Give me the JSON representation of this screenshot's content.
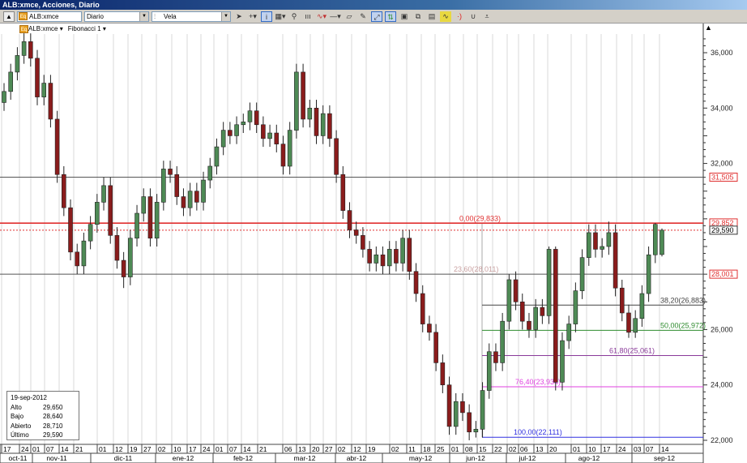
{
  "window": {
    "title": "ALB:xmce, Acciones, Diario"
  },
  "toolbar": {
    "symbol": "ALB:xmce",
    "period": "Diario",
    "chart_type": "Vela",
    "icons": [
      "collapse-icon",
      "cursor-icon",
      "crosshair-icon",
      "info-icon",
      "grid-icon",
      "zoom-icon",
      "volume-bars-icon",
      "indicator-icon",
      "line-icon",
      "eraser-icon",
      "draw-icon",
      "autoscale-icon",
      "compare-icon",
      "template-icon",
      "copy-icon",
      "save-icon",
      "chart-icon",
      "sound-icon",
      "magnet-icon",
      "more-icon"
    ]
  },
  "chart_header": {
    "symbol": "ALB:xmce",
    "study": "Fibonacci 1"
  },
  "info": {
    "date": "19-sep-2012",
    "rows": [
      {
        "k": "Alto",
        "v": "29,650"
      },
      {
        "k": "Bajo",
        "v": "28,640"
      },
      {
        "k": "Abierto",
        "v": "28,710"
      },
      {
        "k": "Último",
        "v": "29,590"
      }
    ]
  },
  "chart_data": {
    "type": "candlestick",
    "ylim": [
      22000,
      36000
    ],
    "y_ticks": [
      "36,000",
      "34,000",
      "32,000",
      "30,000",
      "28,000",
      "26,000",
      "24,000",
      "22,000"
    ],
    "y_tick_values": [
      36000,
      34000,
      32000,
      30000,
      28000,
      26000,
      24000,
      22000
    ],
    "day_labels": [
      "17",
      "24",
      "01",
      "07",
      "14",
      "21",
      "01",
      "12",
      "19",
      "27",
      "02",
      "10",
      "17",
      "24",
      "01",
      "07",
      "14",
      "21",
      "06",
      "13",
      "20",
      "27",
      "02",
      "12",
      "19",
      "02",
      "11",
      "18",
      "25",
      "01",
      "08",
      "15",
      "22",
      "02",
      "06",
      "13",
      "20",
      "01",
      "10",
      "17",
      "24",
      "03",
      "07",
      "14"
    ],
    "month_labels": [
      "oct-11",
      "nov-11",
      "dic-11",
      "ene-12",
      "feb-12",
      "mar-12",
      "abr-12",
      "may-12",
      "jun-12",
      "jul-12",
      "ago-12",
      "sep-12"
    ],
    "price_lines": [
      {
        "value": 31505,
        "label": "31,505",
        "color": "#555555",
        "label_color": "#e03030"
      },
      {
        "value": 29852,
        "label": "29,852",
        "color": "#e03030",
        "label_color": "#e03030"
      },
      {
        "value": 29590,
        "label": "29,590",
        "color": "#e03030",
        "label_color": "#000000",
        "dotted": true
      },
      {
        "value": 28001,
        "label": "28,001",
        "color": "#555555",
        "label_color": "#e03030"
      }
    ],
    "fibonacci": [
      {
        "label": "0,00(29,833)",
        "value": 29833,
        "color": "#e03030"
      },
      {
        "label": "23,60(28,011)",
        "value": 28011,
        "color": "#c8a0a0"
      },
      {
        "label": "38,20(26,883)",
        "value": 26883,
        "color": "#444444"
      },
      {
        "label": "50,00(25,972)",
        "value": 25972,
        "color": "#2e8b2e"
      },
      {
        "label": "61,80(25,061)",
        "value": 25061,
        "color": "#8a3a9a"
      },
      {
        "label": "76,40(23,934)",
        "value": 23934,
        "color": "#e040e0"
      },
      {
        "label": "100,00(22,111)",
        "value": 22111,
        "color": "#3030e0"
      }
    ],
    "up_color": "#4e8a55",
    "down_color": "#8a1c1c",
    "candles_ohlc_thousands": [
      [
        34.2,
        34.9,
        33.9,
        34.6
      ],
      [
        34.6,
        35.6,
        34.3,
        35.3
      ],
      [
        35.3,
        36.2,
        35.0,
        35.9
      ],
      [
        35.9,
        36.7,
        35.6,
        36.4
      ],
      [
        36.4,
        36.7,
        35.5,
        35.8
      ],
      [
        35.8,
        36.1,
        34.1,
        34.4
      ],
      [
        34.4,
        35.2,
        34.1,
        34.9
      ],
      [
        34.9,
        35.2,
        33.3,
        33.6
      ],
      [
        33.6,
        33.9,
        31.3,
        31.6
      ],
      [
        31.6,
        31.9,
        30.1,
        30.4
      ],
      [
        30.4,
        30.7,
        28.5,
        28.8
      ],
      [
        28.8,
        29.1,
        28.0,
        28.3
      ],
      [
        28.3,
        29.5,
        28.0,
        29.2
      ],
      [
        29.2,
        30.1,
        28.9,
        29.8
      ],
      [
        29.8,
        30.9,
        29.5,
        30.6
      ],
      [
        30.6,
        31.5,
        30.3,
        31.2
      ],
      [
        31.2,
        31.5,
        29.1,
        29.4
      ],
      [
        29.4,
        29.7,
        28.2,
        28.5
      ],
      [
        28.5,
        28.8,
        27.5,
        27.9
      ],
      [
        27.9,
        29.6,
        27.6,
        29.3
      ],
      [
        29.3,
        30.5,
        29.0,
        30.2
      ],
      [
        30.2,
        31.1,
        29.9,
        30.8
      ],
      [
        30.8,
        31.1,
        29.0,
        29.3
      ],
      [
        29.3,
        30.9,
        29.0,
        30.6
      ],
      [
        30.6,
        32.1,
        30.3,
        31.8
      ],
      [
        31.8,
        32.1,
        31.3,
        31.6
      ],
      [
        31.6,
        31.9,
        30.5,
        30.8
      ],
      [
        30.8,
        31.1,
        30.1,
        30.4
      ],
      [
        30.4,
        31.3,
        30.1,
        31.0
      ],
      [
        31.0,
        31.3,
        30.3,
        30.6
      ],
      [
        30.6,
        31.7,
        30.3,
        31.4
      ],
      [
        31.4,
        32.2,
        31.1,
        31.9
      ],
      [
        31.9,
        32.9,
        31.6,
        32.6
      ],
      [
        32.6,
        33.5,
        32.3,
        33.2
      ],
      [
        33.2,
        33.5,
        32.7,
        33.0
      ],
      [
        33.0,
        33.7,
        32.7,
        33.4
      ],
      [
        33.4,
        33.8,
        33.1,
        33.5
      ],
      [
        33.5,
        34.2,
        33.2,
        33.9
      ],
      [
        33.9,
        34.2,
        33.1,
        33.4
      ],
      [
        33.4,
        33.7,
        32.6,
        32.9
      ],
      [
        32.9,
        33.4,
        32.6,
        33.1
      ],
      [
        33.1,
        33.4,
        32.4,
        32.7
      ],
      [
        32.7,
        33.0,
        31.6,
        31.9
      ],
      [
        31.9,
        33.5,
        31.6,
        33.2
      ],
      [
        33.2,
        35.6,
        32.9,
        35.3
      ],
      [
        35.3,
        35.6,
        33.3,
        33.6
      ],
      [
        33.6,
        34.3,
        33.3,
        34.0
      ],
      [
        34.0,
        34.3,
        32.7,
        33.0
      ],
      [
        33.0,
        34.1,
        32.7,
        33.8
      ],
      [
        33.8,
        34.1,
        32.6,
        32.9
      ],
      [
        32.9,
        33.2,
        31.3,
        31.6
      ],
      [
        31.6,
        31.9,
        30.0,
        30.3
      ],
      [
        30.3,
        30.6,
        29.3,
        29.6
      ],
      [
        29.6,
        29.9,
        29.1,
        29.4
      ],
      [
        29.4,
        29.7,
        28.6,
        28.9
      ],
      [
        28.9,
        29.2,
        28.1,
        28.4
      ],
      [
        28.4,
        29.0,
        28.1,
        28.7
      ],
      [
        28.7,
        29.0,
        28.0,
        28.3
      ],
      [
        28.3,
        29.2,
        28.0,
        28.9
      ],
      [
        28.9,
        29.2,
        28.1,
        28.4
      ],
      [
        28.4,
        29.6,
        28.1,
        29.3
      ],
      [
        29.3,
        29.6,
        27.8,
        28.1
      ],
      [
        28.1,
        28.4,
        27.0,
        27.3
      ],
      [
        27.3,
        27.6,
        25.9,
        26.2
      ],
      [
        26.2,
        26.5,
        25.6,
        25.9
      ],
      [
        25.9,
        26.2,
        24.5,
        24.8
      ],
      [
        24.8,
        25.1,
        23.7,
        24.0
      ],
      [
        24.0,
        24.3,
        22.2,
        22.5
      ],
      [
        22.5,
        23.7,
        22.2,
        23.4
      ],
      [
        23.4,
        23.7,
        22.7,
        23.0
      ],
      [
        23.0,
        23.3,
        22.0,
        22.3
      ],
      [
        22.3,
        22.7,
        22.1,
        22.4
      ],
      [
        22.4,
        24.1,
        22.1,
        23.8
      ],
      [
        23.8,
        25.5,
        23.5,
        25.2
      ],
      [
        25.2,
        25.5,
        24.5,
        24.8
      ],
      [
        24.8,
        26.6,
        24.5,
        26.3
      ],
      [
        26.3,
        28.0,
        26.0,
        27.8
      ],
      [
        27.8,
        28.1,
        26.7,
        27.0
      ],
      [
        27.0,
        27.3,
        26.0,
        26.3
      ],
      [
        26.3,
        26.6,
        25.7,
        26.0
      ],
      [
        26.0,
        27.1,
        25.7,
        26.8
      ],
      [
        26.8,
        27.1,
        26.2,
        26.5
      ],
      [
        26.5,
        29.0,
        26.2,
        28.9
      ],
      [
        28.9,
        29.0,
        23.8,
        24.1
      ],
      [
        24.1,
        25.9,
        23.8,
        25.6
      ],
      [
        25.6,
        26.5,
        25.3,
        26.2
      ],
      [
        26.2,
        27.7,
        25.9,
        27.4
      ],
      [
        27.4,
        28.9,
        27.1,
        28.6
      ],
      [
        28.6,
        29.8,
        28.3,
        29.5
      ],
      [
        29.5,
        29.8,
        28.6,
        28.9
      ],
      [
        28.9,
        29.3,
        28.6,
        29.0
      ],
      [
        29.0,
        29.9,
        28.7,
        29.5
      ],
      [
        29.5,
        29.8,
        27.2,
        27.5
      ],
      [
        27.5,
        27.8,
        26.3,
        26.6
      ],
      [
        26.6,
        26.9,
        25.7,
        25.9
      ],
      [
        25.9,
        26.7,
        25.7,
        26.4
      ],
      [
        26.4,
        27.6,
        26.1,
        27.3
      ],
      [
        27.3,
        29.0,
        27.0,
        28.7
      ],
      [
        28.7,
        29.85,
        28.4,
        29.8
      ],
      [
        28.71,
        29.65,
        28.64,
        29.59
      ]
    ]
  }
}
